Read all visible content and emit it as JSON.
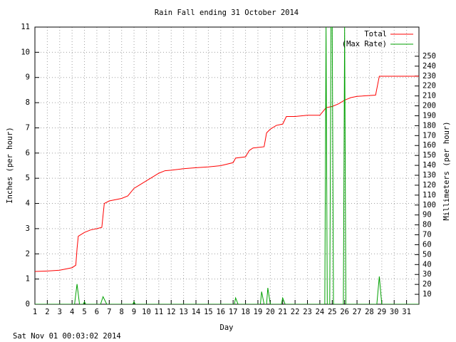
{
  "chart_data": {
    "type": "line",
    "title": "Rain Fall ending 31 October 2014",
    "xlabel": "Day",
    "ylabel": "Inches (per hour)",
    "y2label": "Millimeters (per hour)",
    "footer": "Sat Nov 01 00:03:02 2014",
    "legend": "top-right",
    "grid": true,
    "xlim": [
      1,
      32
    ],
    "xticks": [
      1,
      2,
      3,
      4,
      5,
      6,
      7,
      8,
      9,
      10,
      11,
      12,
      13,
      14,
      15,
      16,
      17,
      18,
      19,
      20,
      21,
      22,
      23,
      24,
      25,
      26,
      27,
      28,
      29,
      30,
      31
    ],
    "ylim": [
      0,
      11
    ],
    "yticks": [
      0,
      1,
      2,
      3,
      4,
      5,
      6,
      7,
      8,
      9,
      10,
      11
    ],
    "y2lim": [
      0,
      279.4
    ],
    "y2ticks": [
      10,
      20,
      30,
      40,
      50,
      60,
      70,
      80,
      90,
      100,
      110,
      120,
      130,
      140,
      150,
      160,
      170,
      180,
      190,
      200,
      210,
      220,
      230,
      240,
      250
    ],
    "series": [
      {
        "name": "Total",
        "color": "#ff0000",
        "x": [
          1,
          2,
          3,
          3.5,
          4,
          4.3,
          4.4,
          4.5,
          5,
          5.5,
          6,
          6.4,
          6.6,
          7,
          7.5,
          8,
          8.5,
          9,
          9.5,
          10,
          10.5,
          11,
          11.5,
          12,
          13,
          14,
          15,
          16,
          17,
          17.2,
          18,
          18.3,
          18.6,
          19.5,
          19.7,
          20,
          20.5,
          21,
          21.3,
          22,
          23,
          24,
          24.5,
          25,
          25.5,
          26,
          26.5,
          27,
          28.5,
          28.8,
          30,
          32
        ],
        "values": [
          1.3,
          1.32,
          1.35,
          1.4,
          1.45,
          1.55,
          2.2,
          2.7,
          2.85,
          2.95,
          3.0,
          3.05,
          4.0,
          4.1,
          4.15,
          4.2,
          4.3,
          4.6,
          4.75,
          4.9,
          5.05,
          5.2,
          5.3,
          5.32,
          5.38,
          5.42,
          5.45,
          5.5,
          5.62,
          5.8,
          5.85,
          6.1,
          6.2,
          6.25,
          6.8,
          6.95,
          7.1,
          7.15,
          7.45,
          7.45,
          7.5,
          7.5,
          7.8,
          7.85,
          7.95,
          8.1,
          8.2,
          8.25,
          8.3,
          9.05,
          9.05,
          9.05
        ]
      },
      {
        "name": "(Max Rate)",
        "color": "#00a000",
        "x": [
          1,
          4.2,
          4.4,
          4.6,
          4.9,
          5,
          5.1,
          6.3,
          6.5,
          6.8,
          8.9,
          9,
          9.1,
          17.1,
          17.2,
          17.4,
          19.2,
          19.3,
          19.5,
          19.7,
          19.8,
          20,
          20.9,
          21,
          21.2,
          24.4,
          24.5,
          24.6,
          24.8,
          24.9,
          25,
          25.1,
          25.9,
          26,
          26.1,
          28.6,
          28.8,
          29,
          32
        ],
        "values": [
          0,
          0,
          0.8,
          0,
          0,
          0.1,
          0,
          0,
          0.3,
          0,
          0,
          0.1,
          0,
          0,
          0.25,
          0,
          0,
          0.5,
          0,
          0,
          0.65,
          0,
          0,
          0.25,
          0,
          0,
          11,
          0,
          0,
          11,
          11,
          0,
          0,
          11,
          0,
          0,
          1.1,
          0,
          0
        ]
      }
    ]
  }
}
